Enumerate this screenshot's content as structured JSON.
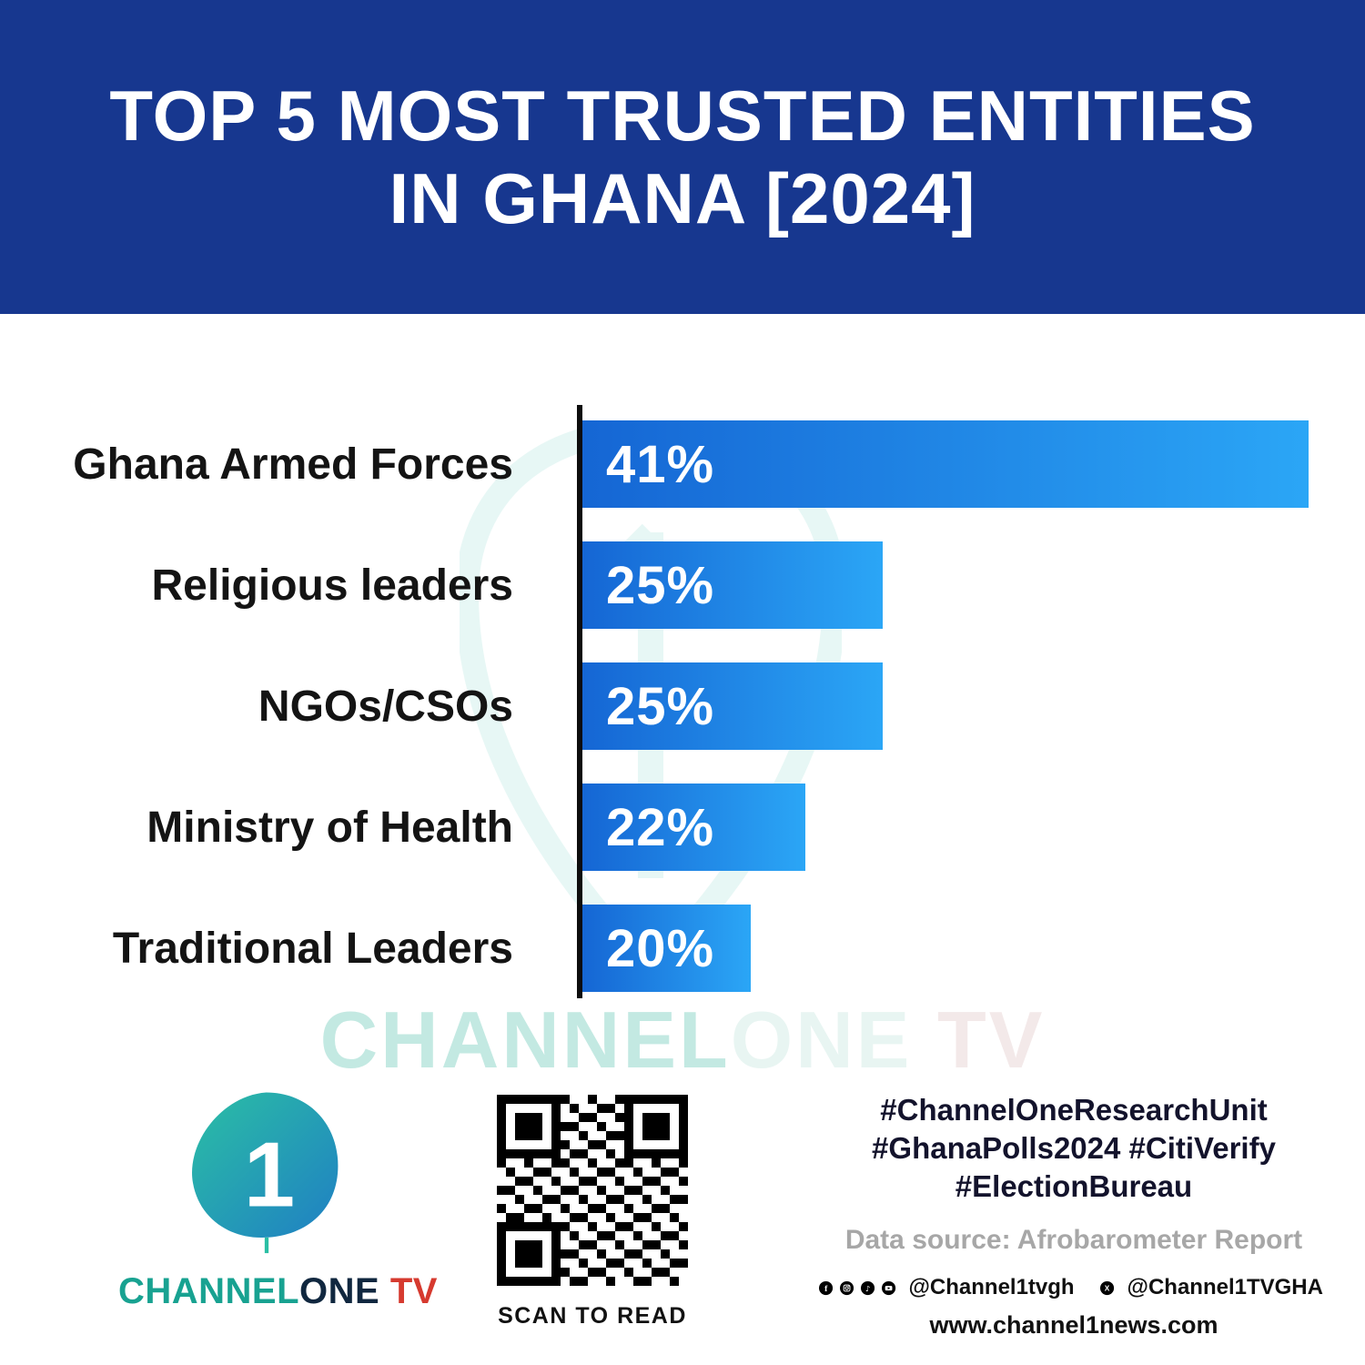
{
  "banner": {
    "title_line1": "TOP 5 MOST TRUSTED ENTITIES",
    "title_line2": "IN GHANA [2024]",
    "bg_color": "#17378f"
  },
  "chart_data": {
    "type": "bar",
    "orientation": "horizontal",
    "title": "Top 5 Most Trusted Entities in Ghana [2024]",
    "categories": [
      "Ghana Armed Forces",
      "Religious leaders",
      "NGOs/CSOs",
      "Ministry of Health",
      "Traditional Leaders"
    ],
    "values": [
      41,
      25,
      25,
      22,
      20
    ],
    "value_labels": [
      "41%",
      "25%",
      "25%",
      "22%",
      "20%"
    ],
    "display_widths_pct": [
      92.8,
      38.4,
      38.4,
      28.5,
      21.5
    ],
    "bar_gradient": [
      "#1566d4",
      "#2ba6f6"
    ],
    "axis_color": "#0d0d0d",
    "grid": false,
    "legend": false
  },
  "watermark": {
    "channel": "CHANNEL",
    "one": "ONE",
    "tv": " TV"
  },
  "footer": {
    "logo": {
      "one_glyph": "1",
      "brand_channel": "CHANNEL",
      "brand_one": "ONE",
      "brand_tv": " TV",
      "teal": "#2bbfa4",
      "blue": "#1f7fc4",
      "red": "#d63a2f"
    },
    "qr_caption": "SCAN TO READ",
    "hashtags_line1": "#ChannelOneResearchUnit",
    "hashtags_line2": "#GhanaPolls2024 #CitiVerify",
    "hashtags_line3": "#ElectionBureau",
    "source": "Data source: Afrobarometer Report",
    "social_handle1": "@Channel1tvgh",
    "social_handle2": "@Channel1TVGHA",
    "website": "www.channel1news.com",
    "social_icons": [
      "facebook-icon",
      "instagram-icon",
      "tiktok-icon",
      "youtube-icon",
      "x-icon"
    ]
  }
}
